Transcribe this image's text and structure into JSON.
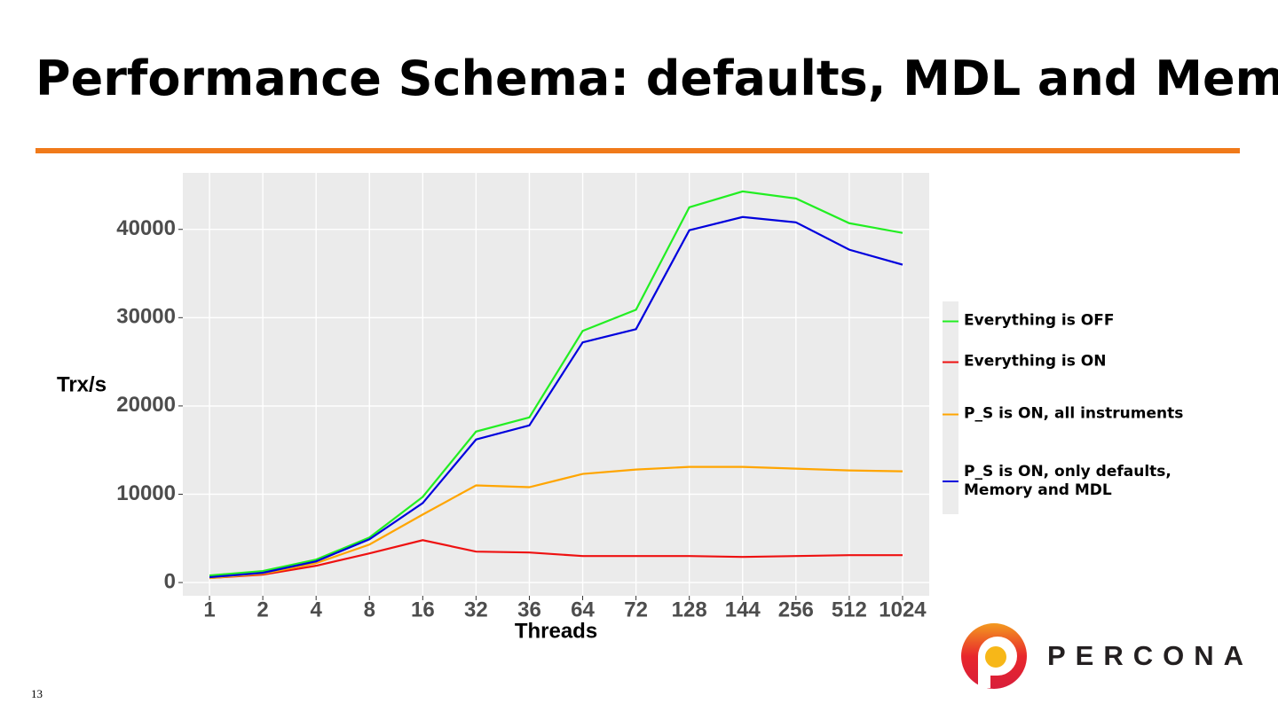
{
  "slide": {
    "title": "Performance Schema: defaults, MDL and Memory",
    "page_number": "13",
    "logo_text": "PERCONA"
  },
  "chart_data": {
    "type": "line",
    "x_label": "Threads",
    "y_label": "Trx/s",
    "categories": [
      "1",
      "2",
      "4",
      "8",
      "16",
      "32",
      "36",
      "64",
      "72",
      "128",
      "144",
      "256",
      "512",
      "1024"
    ],
    "series": [
      {
        "name": "Everything is OFF",
        "color": "#22ee22",
        "values": [
          800,
          1300,
          2600,
          5100,
          9700,
          17100,
          18700,
          28500,
          30900,
          42500,
          44300,
          43500,
          40700,
          39600
        ]
      },
      {
        "name": "Everything is ON",
        "color": "#ee1111",
        "values": [
          500,
          900,
          1900,
          3300,
          4800,
          3500,
          3400,
          3000,
          3000,
          3000,
          2900,
          3000,
          3100,
          3100
        ]
      },
      {
        "name": "P_S is ON, all instruments",
        "color": "#ffa500",
        "values": [
          500,
          1000,
          2200,
          4300,
          7700,
          11000,
          10800,
          12300,
          12800,
          13100,
          13100,
          12900,
          12700,
          12600
        ]
      },
      {
        "name": "P_S is ON, only defaults, Memory and MDL",
        "color": "#0000dd",
        "values": [
          600,
          1100,
          2400,
          4900,
          9000,
          16200,
          17800,
          27200,
          28700,
          39900,
          41400,
          40800,
          37700,
          36000
        ]
      }
    ],
    "ylim": [
      -1500,
      46400
    ],
    "yticks": [
      0,
      10000,
      20000,
      30000,
      40000
    ],
    "grid": true,
    "legend": "right"
  }
}
